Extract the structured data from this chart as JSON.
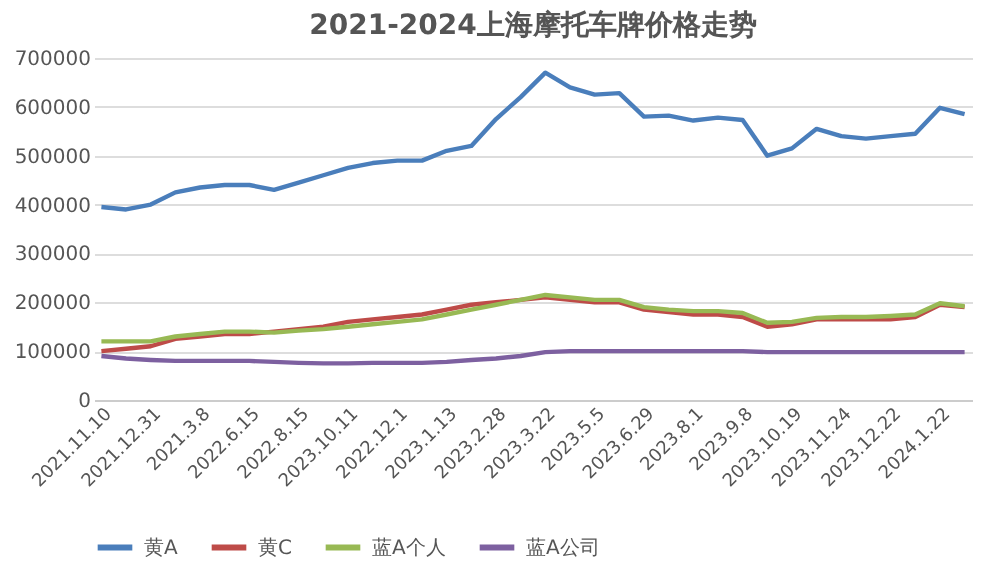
{
  "chart_data": {
    "type": "line",
    "title": "2021-2024上海摩托车牌价格走势",
    "categories": [
      "2021.11.10",
      null,
      "2021.12.31",
      null,
      "2021.3.8",
      null,
      "2022.6.15",
      null,
      "2022.8.15",
      null,
      "2023.10.11",
      null,
      "2022.12.1",
      null,
      "2023.1.13",
      null,
      "2023.2.28",
      null,
      "2023.3.22",
      null,
      "2023.5.5",
      null,
      "2023.6.29",
      null,
      "2023.8.1",
      null,
      "2023.9.8",
      null,
      "2023.10.19",
      null,
      "2023.11.24",
      null,
      "2023.12.22",
      null,
      "2024.1.22",
      null
    ],
    "series": [
      {
        "name": "黄A",
        "color": "#4a7ebb",
        "values": [
          395000,
          390000,
          400000,
          425000,
          435000,
          440000,
          440000,
          430000,
          445000,
          460000,
          475000,
          485000,
          490000,
          490000,
          510000,
          520000,
          575000,
          620000,
          670000,
          640000,
          625000,
          628000,
          580000,
          582000,
          572000,
          578000,
          573000,
          500000,
          515000,
          555000,
          540000,
          535000,
          540000,
          545000,
          598000,
          585000
        ]
      },
      {
        "name": "黄C",
        "color": "#be4b48",
        "values": [
          100000,
          105000,
          110000,
          125000,
          130000,
          135000,
          135000,
          140000,
          145000,
          150000,
          160000,
          165000,
          170000,
          175000,
          185000,
          195000,
          200000,
          205000,
          210000,
          205000,
          200000,
          200000,
          185000,
          180000,
          175000,
          175000,
          170000,
          150000,
          155000,
          165000,
          165000,
          165000,
          165000,
          170000,
          195000,
          190000
        ]
      },
      {
        "name": "蓝A个人",
        "color": "#98b954",
        "values": [
          120000,
          120000,
          120000,
          130000,
          135000,
          140000,
          140000,
          138000,
          142000,
          145000,
          150000,
          155000,
          160000,
          165000,
          175000,
          185000,
          195000,
          205000,
          215000,
          210000,
          205000,
          205000,
          190000,
          185000,
          182000,
          182000,
          178000,
          158000,
          160000,
          168000,
          170000,
          170000,
          172000,
          175000,
          198000,
          192000
        ]
      },
      {
        "name": "蓝A公司",
        "color": "#7d60a0",
        "values": [
          90000,
          85000,
          82000,
          80000,
          80000,
          80000,
          80000,
          78000,
          76000,
          75000,
          75000,
          76000,
          76000,
          76000,
          78000,
          82000,
          85000,
          90000,
          98000,
          100000,
          100000,
          100000,
          100000,
          100000,
          100000,
          100000,
          100000,
          98000,
          98000,
          98000,
          98000,
          98000,
          98000,
          98000,
          98000,
          98000
        ]
      }
    ],
    "ylim": [
      0,
      700000
    ],
    "yticks": [
      0,
      100000,
      200000,
      300000,
      400000,
      500000,
      600000,
      700000
    ],
    "grid": "y",
    "legend": "bottom",
    "marker": "none",
    "line_style": "solid"
  }
}
